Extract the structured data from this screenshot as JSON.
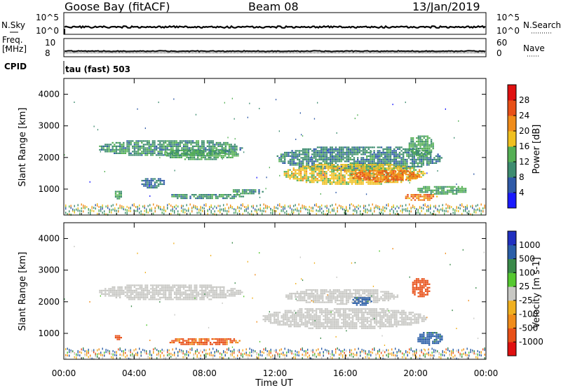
{
  "header": {
    "station": "Goose Bay (fitACF)",
    "beam": "Beam 08",
    "date": "13/Jan/2019"
  },
  "status_panel": {
    "nsky_label": "N.Sky",
    "nsearch_label": "N.Search",
    "noise_ticks": [
      "10^5",
      "10^0"
    ],
    "freq_label": "Freq.",
    "freq_unit": "[MHz]",
    "freq_ticks": [
      "10",
      "8"
    ],
    "nave_label": "Nave",
    "nave_ticks": [
      "60",
      "0"
    ],
    "cpid_label": "CPID",
    "cpid_value": "tau (fast) 503"
  },
  "colors": {
    "power": [
      "#1a1aff",
      "#2f5aa8",
      "#3d8c6f",
      "#55b055",
      "#f0c020",
      "#f08c1a",
      "#e85018",
      "#e01010"
    ],
    "velocity": [
      "#e01010",
      "#e85018",
      "#f08c1a",
      "#f0b020",
      "#c8c8c4",
      "#55c830",
      "#3a8a4a",
      "#2a5ea8",
      "#2030c0"
    ]
  },
  "chart_data": [
    {
      "type": "heatmap",
      "title": "Power",
      "xlabel": "Time UT",
      "ylabel": "Slant Range [km]",
      "x_ticks": [
        "00:00",
        "04:00",
        "08:00",
        "12:00",
        "16:00",
        "20:00",
        "00:00"
      ],
      "x_range_hours": [
        0,
        24
      ],
      "y_ticks": [
        1000,
        2000,
        3000,
        4000
      ],
      "y_range_km": [
        180,
        4500
      ],
      "colorbar": {
        "label": "Power [dB]",
        "ticks": [
          "4",
          "8",
          "12",
          "16",
          "20",
          "24",
          "28"
        ],
        "range": [
          0,
          32
        ]
      },
      "regions": [
        {
          "t": [
            1.9,
            10.1
          ],
          "r": [
            2050,
            2600
          ],
          "level": 10
        },
        {
          "t": [
            5.5,
            10.0
          ],
          "r": [
            1950,
            2300
          ],
          "level": 12
        },
        {
          "t": [
            5.8,
            10.2
          ],
          "r": [
            700,
            900
          ],
          "level": 10
        },
        {
          "t": [
            9.5,
            11.3
          ],
          "r": [
            850,
            1050
          ],
          "level": 10
        },
        {
          "t": [
            4.3,
            5.7
          ],
          "r": [
            1050,
            1400
          ],
          "level": 7
        },
        {
          "t": [
            2.8,
            3.3
          ],
          "r": [
            700,
            1000
          ],
          "level": 11
        },
        {
          "t": [
            12.0,
            21.5
          ],
          "r": [
            1600,
            2400
          ],
          "level": 9
        },
        {
          "t": [
            12.4,
            20.5
          ],
          "r": [
            1150,
            1850
          ],
          "level": 17
        },
        {
          "t": [
            16.2,
            20.2
          ],
          "r": [
            1250,
            1650
          ],
          "level": 23
        },
        {
          "t": [
            19.3,
            21.2
          ],
          "r": [
            650,
            900
          ],
          "level": 22
        },
        {
          "t": [
            20.0,
            23.0
          ],
          "r": [
            850,
            1150
          ],
          "level": 12
        },
        {
          "t": [
            19.5,
            21.0
          ],
          "r": [
            2050,
            2750
          ],
          "level": 12
        }
      ]
    },
    {
      "type": "heatmap",
      "title": "Velocity",
      "xlabel": "Time UT",
      "ylabel": "Slant Range [km]",
      "x_ticks": [
        "00:00",
        "04:00",
        "08:00",
        "12:00",
        "16:00",
        "20:00",
        "00:00"
      ],
      "x_range_hours": [
        0,
        24
      ],
      "y_ticks": [
        1000,
        2000,
        3000,
        4000
      ],
      "y_range_km": [
        180,
        4500
      ],
      "colorbar": {
        "label": "Velocity [m s-1]",
        "ticks": [
          "1000",
          "500",
          "100",
          "25",
          "-25",
          "-100",
          "-500",
          "-1000"
        ]
      },
      "regions": [
        {
          "t": [
            1.9,
            10.1
          ],
          "r": [
            2050,
            2600
          ],
          "level": 0
        },
        {
          "t": [
            5.8,
            10.0
          ],
          "r": [
            650,
            900
          ],
          "level": -150
        },
        {
          "t": [
            2.8,
            3.3
          ],
          "r": [
            800,
            1000
          ],
          "level": -300
        },
        {
          "t": [
            11.2,
            20.6
          ],
          "r": [
            1150,
            1850
          ],
          "level": 0
        },
        {
          "t": [
            12.5,
            19.0
          ],
          "r": [
            1950,
            2450
          ],
          "level": 0
        },
        {
          "t": [
            16.3,
            17.5
          ],
          "r": [
            1900,
            2200
          ],
          "level": 150
        },
        {
          "t": [
            19.7,
            20.8
          ],
          "r": [
            2150,
            2800
          ],
          "level": -200
        },
        {
          "t": [
            20.0,
            21.5
          ],
          "r": [
            650,
            1100
          ],
          "level": 150
        }
      ]
    }
  ]
}
